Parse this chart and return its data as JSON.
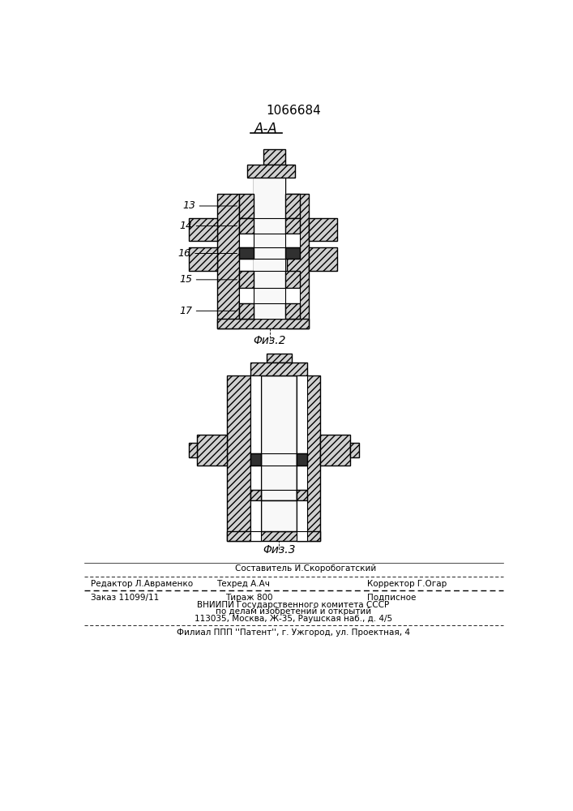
{
  "patent_number": "1066684",
  "section_label": "A-A",
  "fig2_label": "Φиз.2",
  "fig3_label": "Φиз.3",
  "label_13": "13",
  "label_14": "14",
  "label_16": "16",
  "label_15": "15",
  "label_17": "17",
  "footer_line1_center_top": "Составитель И.Скоробогатский",
  "footer_line1_left": "Редактор Л.Авраменко",
  "footer_line1_center": "Техред А.Ач",
  "footer_line1_right": "Корректор Г.Огар",
  "footer_line2_col1": "Заказ 11099/11",
  "footer_line2_col2": "Тираж 800",
  "footer_line2_col3": "Подписное",
  "footer_line3": "ВНИИПИ Государственного комитета СССР",
  "footer_line4": "по делам изобретений и открытий",
  "footer_line5": "113035, Москва, Ж-35, Раушская наб., д. 4/5",
  "footer_line6": "Филиал ППП ''Патент'', г. Ужгород, ул. Проектная, 4",
  "bg_color": "#ffffff",
  "hatch_color": "#555555",
  "line_color": "#000000"
}
